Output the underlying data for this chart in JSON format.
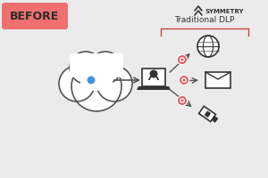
{
  "bg_color": "#ebebeb",
  "before_bg": "#f07070",
  "before_text": "BEFORE",
  "before_text_color": "#2a2a2a",
  "title_text": "Traditional DLP",
  "title_color": "#333333",
  "cloud_color": "#ffffff",
  "cloud_edge": "#555555",
  "arrow_color": "#555555",
  "dot_blue": "#4a90d9",
  "ring_red": "#e05555",
  "ring_fill": "#ffffff",
  "icon_color": "#333333",
  "symmetry_color": "#333333",
  "bracket_color": "#cc4444"
}
